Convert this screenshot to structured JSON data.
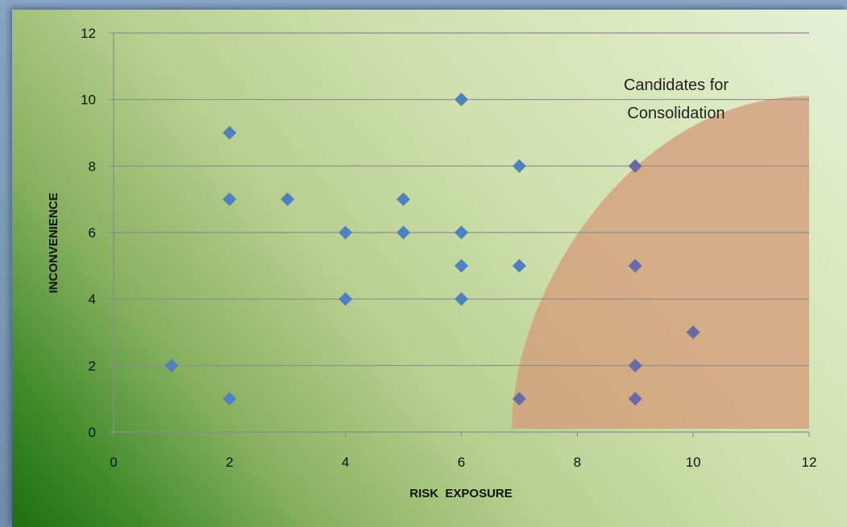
{
  "chart_data": {
    "type": "scatter",
    "title": "",
    "xlabel": "RISK  EXPOSURE",
    "ylabel": "INCONVENIENCE",
    "xlim": [
      0,
      12
    ],
    "ylim": [
      0,
      12
    ],
    "xticks": [
      "0",
      "2",
      "4",
      "6",
      "8",
      "10",
      "12"
    ],
    "yticks": [
      "0",
      "2",
      "4",
      "6",
      "8",
      "10",
      "12"
    ],
    "grid": "horizontal",
    "marker": "diamond",
    "colors": {
      "point": "#4f81bd",
      "point_in_region": "#6a6aa6",
      "region": "#d49a78",
      "gridline": "#8c8c8c"
    },
    "series": [
      {
        "x": [
          1,
          2,
          2,
          2,
          3,
          4,
          4,
          5,
          5,
          6,
          6,
          6,
          6,
          7,
          7,
          7,
          9,
          9,
          9,
          9,
          10
        ],
        "y": [
          2,
          1,
          7,
          9,
          7,
          4,
          6,
          6,
          7,
          4,
          5,
          6,
          10,
          1,
          5,
          8,
          1,
          2,
          5,
          8,
          3
        ]
      }
    ],
    "annotation": {
      "lines": [
        "Candidates for",
        "Consolidation"
      ]
    }
  }
}
